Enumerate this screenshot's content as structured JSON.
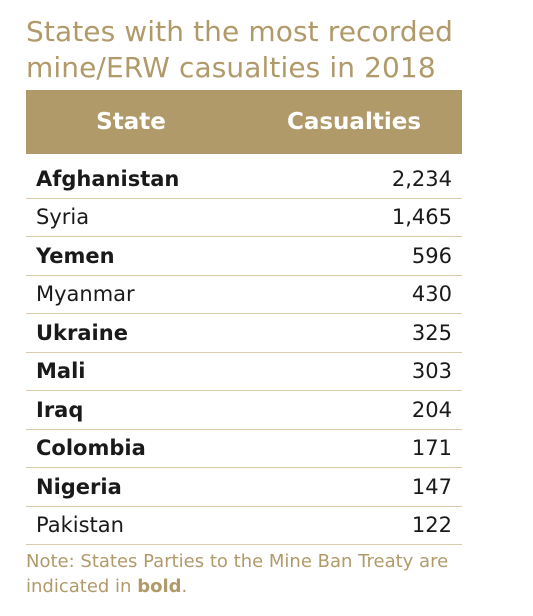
{
  "title_line1": "States with the most recorded",
  "title_line2": "mine/ERW casualties in 2018",
  "table": {
    "headers": {
      "state": "State",
      "casualties": "Casualties"
    },
    "rows": [
      {
        "state": "Afghanistan",
        "casualties": "2,234",
        "bold": true
      },
      {
        "state": "Syria",
        "casualties": "1,465",
        "bold": false
      },
      {
        "state": "Yemen",
        "casualties": "596",
        "bold": true
      },
      {
        "state": "Myanmar",
        "casualties": "430",
        "bold": false
      },
      {
        "state": "Ukraine",
        "casualties": "325",
        "bold": true
      },
      {
        "state": "Mali",
        "casualties": "303",
        "bold": true
      },
      {
        "state": "Iraq",
        "casualties": "204",
        "bold": true
      },
      {
        "state": "Colombia",
        "casualties": "171",
        "bold": true
      },
      {
        "state": "Nigeria",
        "casualties": "147",
        "bold": true
      },
      {
        "state": "Pakistan",
        "casualties": "122",
        "bold": false
      }
    ]
  },
  "note": {
    "prefix": "Note: States Parties to the Mine Ban Treaty are indicated in ",
    "bold_word": "bold",
    "suffix": "."
  },
  "colors": {
    "accent": "#b19a6a",
    "divider": "#d8cba9",
    "text": "#1a1a1a"
  }
}
